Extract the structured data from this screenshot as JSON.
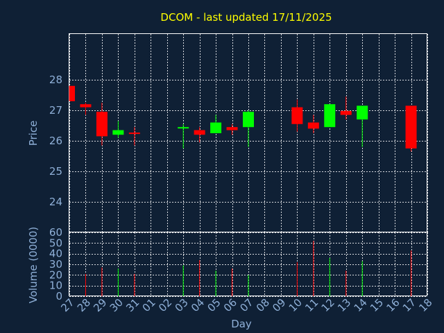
{
  "chart_data": {
    "type": "candlestick",
    "title": "DCOM - last updated 17/11/2025",
    "xlabel": "Day",
    "price_panel": {
      "ylabel": "Price",
      "ylim": [
        23,
        29.5
      ],
      "yticks": [
        24,
        25,
        26,
        27,
        28
      ]
    },
    "volume_panel": {
      "ylabel": "Volume (0000)",
      "ylim": [
        0,
        60
      ],
      "yticks": [
        0,
        10,
        20,
        30,
        40,
        50,
        60
      ]
    },
    "x_tick_labels": [
      "27",
      "28",
      "29",
      "30",
      "31",
      "01",
      "02",
      "03",
      "04",
      "05",
      "06",
      "07",
      "08",
      "09",
      "10",
      "11",
      "12",
      "13",
      "14",
      "15",
      "16",
      "17",
      "18"
    ],
    "up_color": "#00ff00",
    "down_color": "#ff0000",
    "candles": [
      {
        "day": "27",
        "open": 27.8,
        "close": 27.3,
        "high": 27.8,
        "low": 27.3,
        "volume": 0
      },
      {
        "day": "28",
        "open": 27.2,
        "close": 27.1,
        "high": 27.25,
        "low": 26.85,
        "volume": 21
      },
      {
        "day": "29",
        "open": 26.95,
        "close": 26.15,
        "high": 27.25,
        "low": 25.85,
        "volume": 27
      },
      {
        "day": "30",
        "open": 26.2,
        "close": 26.35,
        "high": 26.65,
        "low": 26.1,
        "volume": 26
      },
      {
        "day": "31",
        "open": 26.27,
        "close": 26.25,
        "high": 26.45,
        "low": 25.85,
        "volume": 21
      },
      {
        "day": "03",
        "open": 26.45,
        "close": 26.45,
        "high": 26.55,
        "low": 25.75,
        "volume": 29
      },
      {
        "day": "04",
        "open": 26.35,
        "close": 26.2,
        "high": 26.45,
        "low": 25.95,
        "volume": 34
      },
      {
        "day": "05",
        "open": 26.25,
        "close": 26.6,
        "high": 26.85,
        "low": 26.25,
        "volume": 24
      },
      {
        "day": "06",
        "open": 26.45,
        "close": 26.35,
        "high": 26.55,
        "low": 26.2,
        "volume": 26
      },
      {
        "day": "07",
        "open": 26.45,
        "close": 26.95,
        "high": 27.0,
        "low": 25.8,
        "volume": 20
      },
      {
        "day": "10",
        "open": 27.1,
        "close": 26.55,
        "high": 27.35,
        "low": 26.3,
        "volume": 32
      },
      {
        "day": "11",
        "open": 26.6,
        "close": 26.4,
        "high": 26.85,
        "low": 26.25,
        "volume": 52
      },
      {
        "day": "12",
        "open": 26.45,
        "close": 27.2,
        "high": 27.2,
        "low": 26.45,
        "volume": 36
      },
      {
        "day": "13",
        "open": 26.98,
        "close": 26.85,
        "high": 27.45,
        "low": 26.7,
        "volume": 24
      },
      {
        "day": "14",
        "open": 26.7,
        "close": 27.15,
        "high": 27.15,
        "low": 25.8,
        "volume": 33
      },
      {
        "day": "17",
        "open": 27.15,
        "close": 25.75,
        "high": 27.15,
        "low": 25.65,
        "volume": 43
      }
    ]
  }
}
